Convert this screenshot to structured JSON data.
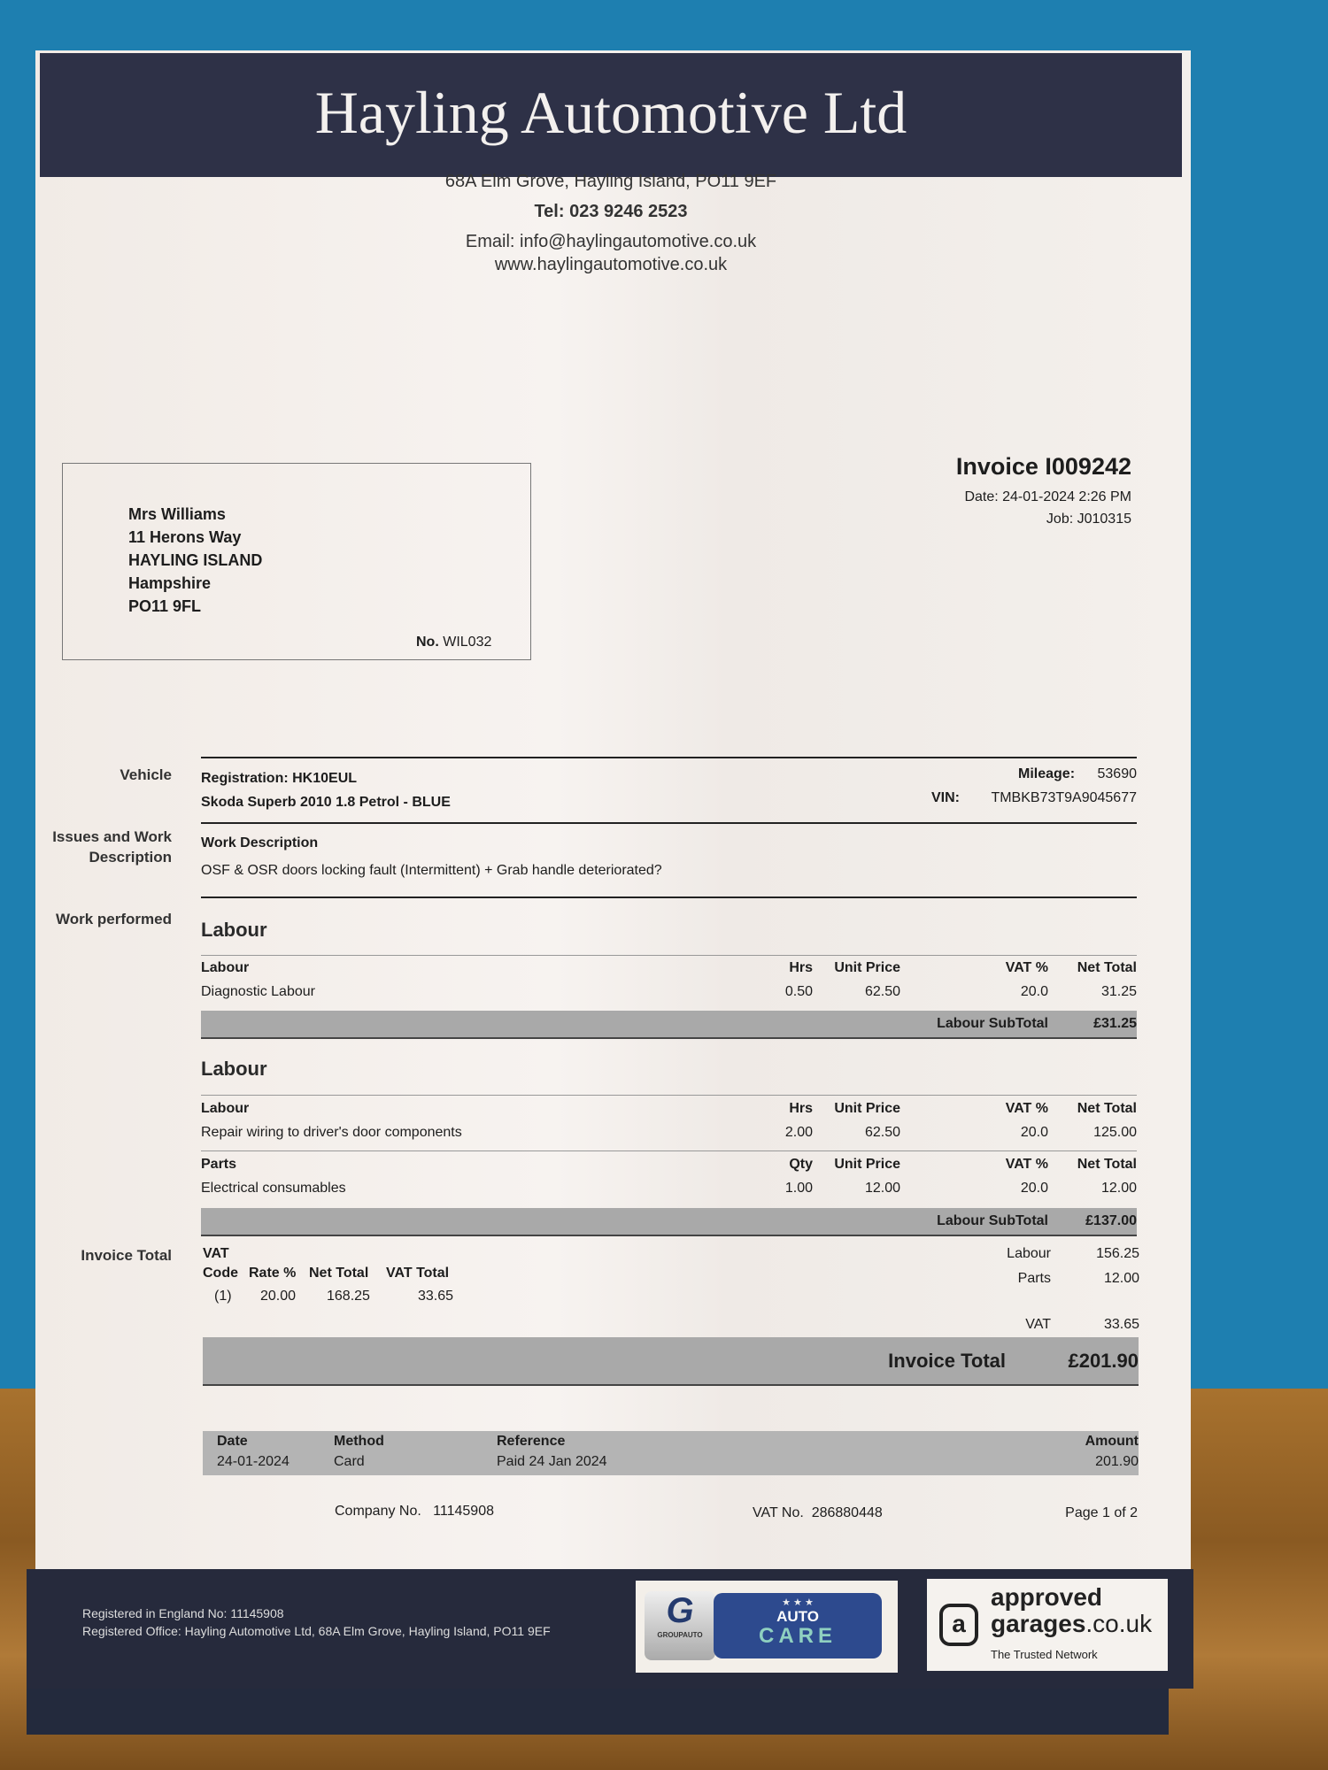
{
  "company": {
    "name": "Hayling Automotive Ltd",
    "address": "68A Elm Grove, Hayling Island, PO11 9EF",
    "tel": "Tel: 023 9246 2523",
    "email": "Email: info@haylingautomotive.co.uk",
    "web": "www.haylingautomotive.co.uk"
  },
  "customer": {
    "lines": [
      "Mrs Williams",
      "11 Herons Way",
      "HAYLING ISLAND",
      "Hampshire",
      "PO11 9FL"
    ],
    "no_label": "No.",
    "no": "WIL032"
  },
  "invoice": {
    "title": "Invoice I009242",
    "date": "Date: 24-01-2024 2:26 PM",
    "job": "Job: J010315"
  },
  "vehicle": {
    "label": "Vehicle",
    "registration": "Registration: HK10EUL",
    "model": "Skoda Superb  2010 1.8 Petrol - BLUE",
    "mileage_label": "Mileage:",
    "mileage": "53690",
    "vin_label": "VIN:",
    "vin": "TMBKB73T9A9045677"
  },
  "issues": {
    "label": "Issues and Work Description",
    "heading": "Work Description",
    "text": "OSF & OSR doors locking fault (Intermittent) + Grab handle deteriorated?"
  },
  "work": {
    "label": "Work performed",
    "sections": [
      {
        "heading": "Labour",
        "groups": [
          {
            "cols": [
              "Labour",
              "Hrs",
              "Unit Price",
              "VAT %",
              "Net Total"
            ],
            "row": [
              "Diagnostic Labour",
              "0.50",
              "62.50",
              "20.0",
              "31.25"
            ]
          }
        ],
        "subtotal_label": "Labour SubTotal",
        "subtotal": "£31.25"
      },
      {
        "heading": "Labour",
        "groups": [
          {
            "cols": [
              "Labour",
              "Hrs",
              "Unit Price",
              "VAT %",
              "Net Total"
            ],
            "row": [
              "Repair wiring to driver's door components",
              "2.00",
              "62.50",
              "20.0",
              "125.00"
            ]
          },
          {
            "cols": [
              "Parts",
              "Qty",
              "Unit Price",
              "VAT %",
              "Net Total"
            ],
            "row": [
              "Electrical consumables",
              "1.00",
              "12.00",
              "20.0",
              "12.00"
            ]
          }
        ],
        "subtotal_label": "Labour SubTotal",
        "subtotal": "£137.00"
      }
    ]
  },
  "totals": {
    "label": "Invoice Total",
    "vat_heading": "VAT",
    "vat_cols": [
      "Code",
      "Rate %",
      "Net Total",
      "VAT Total"
    ],
    "vat_row": [
      "(1)",
      "20.00",
      "168.25",
      "33.65"
    ],
    "labour_label": "Labour",
    "labour": "156.25",
    "parts_label": "Parts",
    "parts": "12.00",
    "vat_label": "VAT",
    "vat": "33.65",
    "total_label": "Invoice Total",
    "total": "£201.90"
  },
  "payment": {
    "cols": [
      "Date",
      "Method",
      "Reference",
      "Amount"
    ],
    "row": [
      "24-01-2024",
      "Card",
      "Paid 24 Jan 2024",
      "201.90"
    ]
  },
  "page_footer": {
    "company_no_label": "Company No.",
    "company_no": "11145908",
    "vat_no_label": "VAT No.",
    "vat_no": "286880448",
    "page": "Page 1 of 2"
  },
  "footer": {
    "registered": "Registered in England No: 11145908",
    "office": "Registered Office: Hayling Automotive Ltd, 68A Elm Grove, Hayling Island, PO11 9EF",
    "logo1": {
      "brand": "GROUPAUTO",
      "top": "AUTO",
      "bottom": "CARE"
    },
    "logo2": {
      "line1": "approved",
      "line2": "garages",
      "tld": ".co.uk",
      "tagline": "The Trusted Network"
    }
  }
}
